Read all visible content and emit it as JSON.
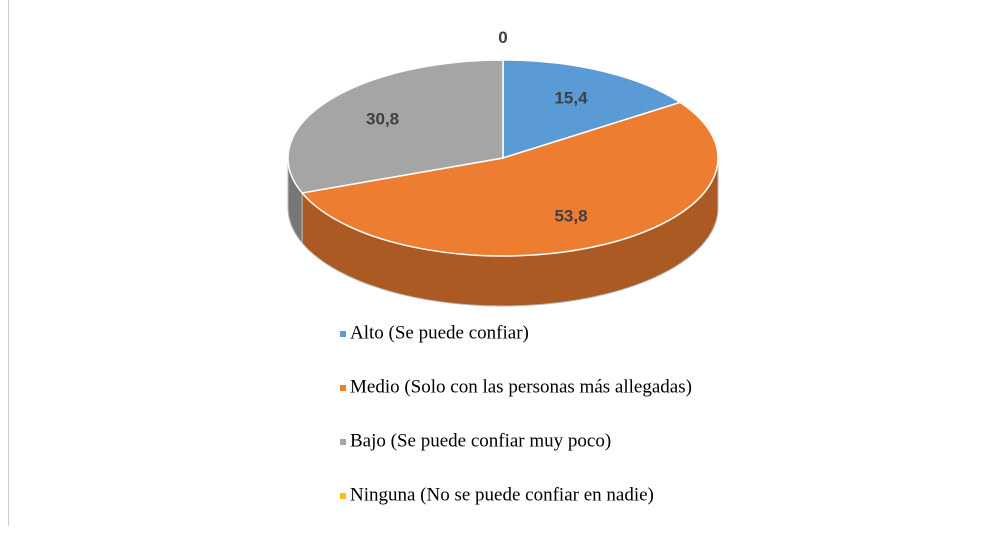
{
  "chart_data": {
    "type": "pie3d",
    "categories": [
      "Alto (Se puede confiar)",
      "Medio (Solo con las personas más allegadas)",
      "Bajo (Se puede confiar muy poco)",
      "Ninguna (No se puede confiar en nadie)"
    ],
    "values": [
      15.4,
      53.8,
      30.8,
      0
    ],
    "value_labels": [
      "15,4",
      "53,8",
      "30,8",
      "0"
    ],
    "colors": [
      "#5b9bd5",
      "#ed7d31",
      "#a5a5a5",
      "#ffc000"
    ],
    "legend": "bottom"
  }
}
